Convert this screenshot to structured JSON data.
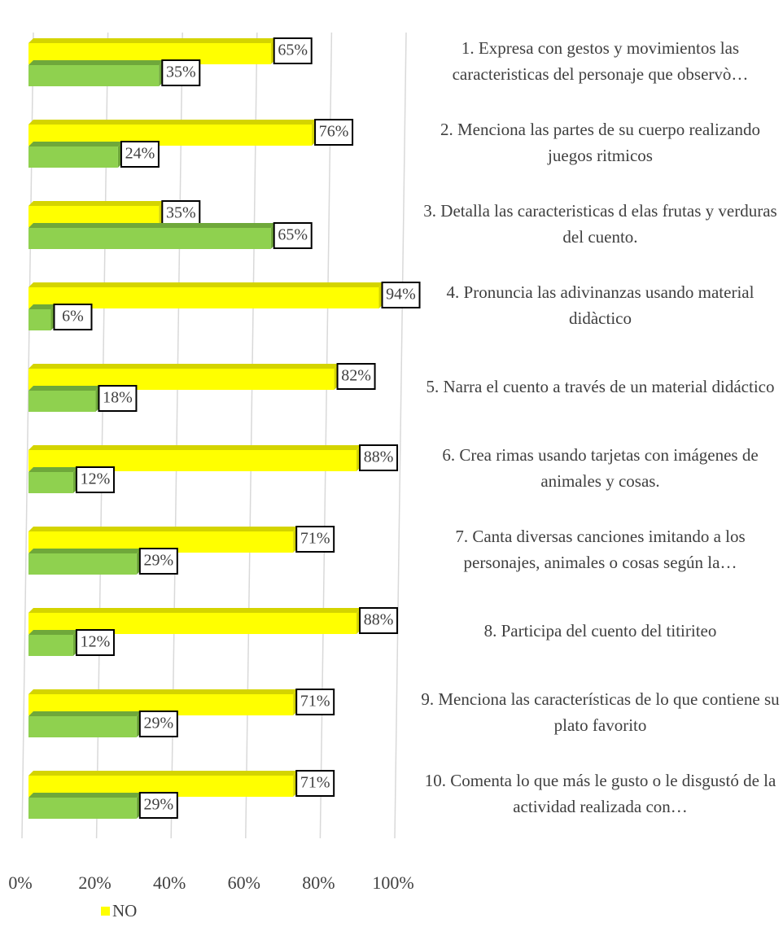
{
  "chart_data": {
    "type": "bar",
    "orientation": "horizontal",
    "categories": [
      "1. Expresa con gestos y movimientos las caracteristicas del personaje que observò…",
      "2. Menciona las partes de su cuerpo realizando juegos ritmicos",
      "3. Detalla las caracteristicas d elas frutas y verduras del cuento.",
      "4. Pronuncia las adivinanzas usando material didàctico",
      "5. Narra el cuento a través de un material didáctico",
      "6. Crea rimas usando tarjetas con imágenes de animales y cosas.",
      "7. Canta diversas canciones imitando a los personajes, animales o cosas según la…",
      "8. Participa del cuento del titiriteo",
      "9. Menciona las características de lo que contiene su plato favorito",
      "10. Comenta lo que más le gusto o le disgustó de la actividad realizada con…"
    ],
    "series": [
      {
        "name": "NO",
        "color": "#ffff00",
        "values": [
          65,
          76,
          35,
          94,
          82,
          88,
          71,
          88,
          71,
          71
        ],
        "value_labels": [
          "65%",
          "76%",
          "35%",
          "94%",
          "82%",
          "88%",
          "71%",
          "88%",
          "71%",
          "71%"
        ]
      },
      {
        "color": "#8fd14f",
        "values": [
          35,
          24,
          65,
          6,
          18,
          12,
          29,
          12,
          29,
          29
        ],
        "value_labels": [
          "35%",
          "24%",
          "65%",
          "6%",
          "18%",
          "12%",
          "29%",
          "12%",
          "29%",
          "29%"
        ]
      }
    ],
    "xlim": [
      0,
      100
    ],
    "xticks": [
      {
        "value": 0,
        "label": "0%"
      },
      {
        "value": 20,
        "label": "20%"
      },
      {
        "value": 40,
        "label": "40%"
      },
      {
        "value": 60,
        "label": "60%"
      },
      {
        "value": 80,
        "label": "80%"
      },
      {
        "value": 100,
        "label": "100%"
      }
    ],
    "grid": true,
    "legend": "bottom"
  }
}
